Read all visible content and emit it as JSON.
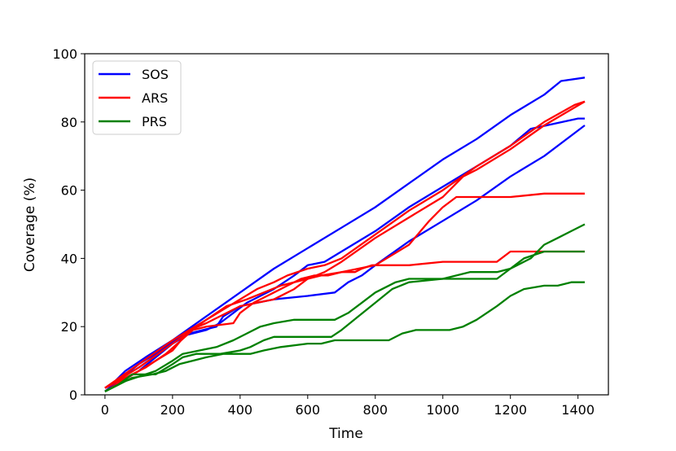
{
  "chart_data": {
    "type": "line",
    "xlabel": "Time",
    "ylabel": "Coverage (%)",
    "xlim": [
      -60,
      1490
    ],
    "ylim": [
      0,
      100
    ],
    "xticks": [
      0,
      200,
      400,
      600,
      800,
      1000,
      1200,
      1400
    ],
    "yticks": [
      0,
      20,
      40,
      60,
      80,
      100
    ],
    "grid": false,
    "legend_position": "top-left",
    "legend": [
      {
        "label": "SOS",
        "color": "#0000ff"
      },
      {
        "label": "ARS",
        "color": "#ff0000"
      },
      {
        "label": "PRS",
        "color": "#008000"
      }
    ],
    "series": [
      {
        "group": "SOS",
        "color": "#0000ff",
        "x": [
          0,
          30,
          60,
          120,
          200,
          300,
          400,
          500,
          600,
          700,
          800,
          900,
          1000,
          1100,
          1200,
          1300,
          1350,
          1420
        ],
        "y": [
          2,
          4,
          7,
          11,
          16,
          23,
          30,
          37,
          43,
          49,
          55,
          62,
          69,
          75,
          82,
          88,
          92,
          93
        ]
      },
      {
        "group": "SOS",
        "color": "#0000ff",
        "x": [
          0,
          50,
          100,
          150,
          220,
          300,
          340,
          380,
          420,
          500,
          560,
          600,
          650,
          700,
          800,
          900,
          1000,
          1100,
          1200,
          1260,
          1400,
          1420
        ],
        "y": [
          1,
          5,
          9,
          12,
          17,
          19,
          21,
          24,
          27,
          31,
          35,
          38,
          39,
          42,
          48,
          55,
          61,
          67,
          73,
          78,
          81,
          81
        ]
      },
      {
        "group": "SOS",
        "color": "#0000ff",
        "x": [
          0,
          100,
          200,
          250,
          330,
          350,
          400,
          450,
          500,
          600,
          680,
          720,
          760,
          800,
          900,
          1000,
          1100,
          1200,
          1300,
          1420
        ],
        "y": [
          1,
          7,
          15,
          18,
          20,
          23,
          26,
          27,
          28,
          29,
          30,
          33,
          35,
          38,
          45,
          51,
          57,
          64,
          70,
          79
        ]
      },
      {
        "group": "ARS",
        "color": "#ff0000",
        "x": [
          0,
          100,
          200,
          300,
          400,
          450,
          500,
          540,
          600,
          650,
          700,
          800,
          900,
          1000,
          1100,
          1200,
          1300,
          1390,
          1420
        ],
        "y": [
          2,
          8,
          15,
          22,
          28,
          31,
          33,
          35,
          37,
          38,
          40,
          47,
          54,
          60,
          67,
          73,
          80,
          85,
          86
        ]
      },
      {
        "group": "ARS",
        "color": "#ff0000",
        "x": [
          0,
          100,
          200,
          250,
          300,
          400,
          450,
          500,
          560,
          600,
          650,
          700,
          800,
          900,
          950,
          1000,
          1060,
          1100,
          1200,
          1300,
          1420
        ],
        "y": [
          1,
          7,
          13,
          19,
          21,
          26,
          27,
          28,
          31,
          34,
          36,
          39,
          46,
          52,
          55,
          58,
          64,
          66,
          72,
          79,
          86
        ]
      },
      {
        "group": "ARS",
        "color": "#ff0000",
        "x": [
          0,
          100,
          200,
          250,
          300,
          360,
          420,
          470,
          520,
          560,
          600,
          640,
          700,
          800,
          900,
          960,
          1000,
          1040,
          1100,
          1150,
          1200,
          1300,
          1420
        ],
        "y": [
          2,
          9,
          16,
          19,
          22,
          26,
          28,
          30,
          32,
          33,
          34,
          35,
          36,
          38,
          44,
          51,
          55,
          58,
          58,
          58,
          58,
          59,
          59
        ]
      },
      {
        "group": "ARS",
        "color": "#ff0000",
        "x": [
          0,
          60,
          120,
          180,
          260,
          300,
          380,
          400,
          440,
          480,
          500,
          540,
          580,
          620,
          660,
          700,
          740,
          760,
          790,
          820,
          900,
          1000,
          1100,
          1160,
          1200,
          1260,
          1300,
          1420
        ],
        "y": [
          2,
          5,
          8,
          12,
          19,
          20,
          21,
          24,
          27,
          29,
          30,
          32,
          34,
          35,
          35,
          36,
          36,
          37,
          38,
          38,
          38,
          39,
          39,
          39,
          42,
          42,
          42,
          42
        ]
      },
      {
        "group": "PRS",
        "color": "#008000",
        "x": [
          0,
          40,
          80,
          150,
          200,
          230,
          270,
          340,
          400,
          430,
          470,
          500,
          540,
          580,
          620,
          670,
          700,
          750,
          800,
          850,
          900,
          1000,
          1100,
          1160,
          1200,
          1260,
          1300,
          1340,
          1380,
          1420
        ],
        "y": [
          1,
          3,
          6,
          6,
          9,
          11,
          12,
          12,
          13,
          14,
          16,
          17,
          17,
          17,
          17,
          17,
          19,
          23,
          27,
          31,
          33,
          34,
          34,
          34,
          37,
          40,
          44,
          46,
          48,
          50
        ]
      },
      {
        "group": "PRS",
        "color": "#008000",
        "x": [
          0,
          60,
          120,
          150,
          200,
          230,
          280,
          330,
          380,
          420,
          460,
          500,
          560,
          640,
          680,
          720,
          760,
          800,
          860,
          900,
          940,
          1000,
          1040,
          1080,
          1120,
          1160,
          1200,
          1240,
          1300,
          1420
        ],
        "y": [
          1,
          4,
          6,
          7,
          10,
          12,
          13,
          14,
          16,
          18,
          20,
          21,
          22,
          22,
          22,
          24,
          27,
          30,
          33,
          34,
          34,
          34,
          35,
          36,
          36,
          36,
          37,
          40,
          42,
          42
        ]
      },
      {
        "group": "PRS",
        "color": "#008000",
        "x": [
          0,
          80,
          140,
          180,
          220,
          260,
          300,
          350,
          400,
          430,
          470,
          520,
          600,
          640,
          680,
          760,
          800,
          840,
          880,
          920,
          980,
          1020,
          1060,
          1100,
          1160,
          1200,
          1240,
          1300,
          1340,
          1380,
          1420
        ],
        "y": [
          1,
          5,
          6,
          7,
          9,
          10,
          11,
          12,
          12,
          12,
          13,
          14,
          15,
          15,
          16,
          16,
          16,
          16,
          18,
          19,
          19,
          19,
          20,
          22,
          26,
          29,
          31,
          32,
          32,
          33,
          33
        ]
      }
    ]
  }
}
